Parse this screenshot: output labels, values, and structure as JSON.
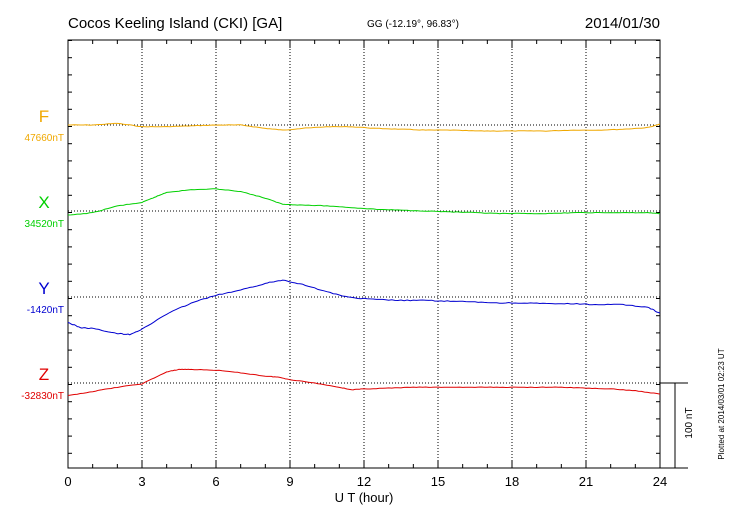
{
  "header": {
    "station": "Cocos Keeling Island (CKI)  [GA]",
    "coords": "GG (-12.19°,  96.83°)",
    "date": "2014/01/30"
  },
  "xaxis": {
    "label": "U T (hour)",
    "ticks": [
      "0",
      "3",
      "6",
      "9",
      "12",
      "15",
      "18",
      "21",
      "24"
    ]
  },
  "components": [
    {
      "key": "F",
      "baseline": "47660nT",
      "color": "#f0a800"
    },
    {
      "key": "X",
      "baseline": "34520nT",
      "color": "#00d000"
    },
    {
      "key": "Y",
      "baseline": "-1420nT",
      "color": "#0000d0"
    },
    {
      "key": "Z",
      "baseline": "-32830nT",
      "color": "#e00000"
    }
  ],
  "scale": {
    "label": "100 nT",
    "nT": 100
  },
  "footer": {
    "plotted": "Plotted at 2014/03/01 02:23 UT"
  },
  "chart_data": {
    "type": "line",
    "xlabel": "U T (hour)",
    "xlim": [
      0,
      24
    ],
    "grid": true,
    "series": [
      {
        "name": "F",
        "unit": "nT",
        "baseline": 47660,
        "x": [
          0,
          1,
          2,
          3,
          4,
          5,
          6,
          7,
          8,
          8.7,
          9.5,
          10.5,
          11.5,
          12.5,
          13.5,
          14.5,
          15.5,
          16.5,
          17.5,
          18.5,
          19.5,
          20.5,
          21.5,
          22.5,
          23.5,
          24
        ],
        "y": [
          0,
          0,
          2,
          -2,
          -2,
          -1,
          0,
          0,
          -4,
          -6,
          -4,
          -2,
          -2,
          -4,
          -5,
          -6,
          -6,
          -7,
          -7,
          -7,
          -7,
          -6,
          -6,
          -5,
          -3,
          1
        ]
      },
      {
        "name": "X",
        "unit": "nT",
        "baseline": 34520,
        "x": [
          0,
          1,
          2,
          3,
          3.5,
          4,
          5,
          6,
          7,
          8,
          8.7,
          9.5,
          10.5,
          11.5,
          12.5,
          13.5,
          14.5,
          15.5,
          16.5,
          17.5,
          18.5,
          19.5,
          20.5,
          21.5,
          22.5,
          23.5,
          24
        ],
        "y": [
          -5,
          -2,
          6,
          10,
          16,
          22,
          25,
          26,
          23,
          15,
          8,
          7,
          6,
          4,
          2,
          1,
          0,
          -1,
          -2,
          -3,
          -3,
          -3,
          -2,
          -2,
          -2,
          -2,
          -3
        ]
      },
      {
        "name": "Y",
        "unit": "nT",
        "baseline": -1420,
        "x": [
          0,
          0.5,
          1,
          2,
          2.5,
          3,
          4,
          5,
          6,
          7,
          8,
          8.7,
          9.5,
          10.5,
          11.5,
          12.5,
          13.5,
          14.5,
          15.5,
          16.5,
          17.5,
          18.5,
          19.5,
          20.5,
          21.5,
          22.5,
          23.5,
          24
        ],
        "y": [
          -30,
          -36,
          -37,
          -43,
          -44,
          -38,
          -20,
          -7,
          2,
          8,
          16,
          20,
          15,
          6,
          -1,
          -3,
          -4,
          -4,
          -5,
          -6,
          -7,
          -7,
          -8,
          -8,
          -9,
          -9,
          -12,
          -19
        ]
      },
      {
        "name": "Z",
        "unit": "nT",
        "baseline": -32830,
        "x": [
          0,
          1,
          2,
          3,
          4,
          4.5,
          5,
          6,
          7,
          8,
          8.5,
          9,
          10,
          11,
          11.5,
          12,
          13,
          14,
          15,
          16,
          17,
          18,
          19,
          20,
          21,
          22,
          23,
          24
        ],
        "y": [
          -15,
          -10,
          -5,
          -1,
          13,
          16,
          16,
          15,
          12,
          8,
          7,
          4,
          0,
          -5,
          -8,
          -7,
          -6,
          -5,
          -5,
          -5,
          -5,
          -5,
          -5,
          -5,
          -6,
          -7,
          -9,
          -13
        ]
      }
    ]
  }
}
